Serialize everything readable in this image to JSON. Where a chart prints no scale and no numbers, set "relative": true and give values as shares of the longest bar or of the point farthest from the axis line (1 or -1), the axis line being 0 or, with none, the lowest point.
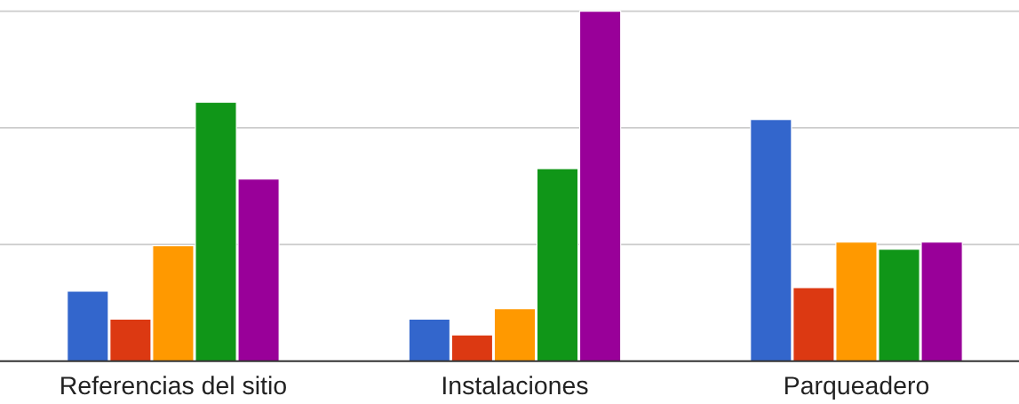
{
  "chart_data": {
    "type": "bar",
    "relative": true,
    "legend": false,
    "categories": [
      "Referencias del sitio",
      "Instalaciones",
      "Parqueadero"
    ],
    "series": [
      {
        "color": "#3366cc",
        "values": [
          0.2,
          0.12,
          0.69
        ]
      },
      {
        "color": "#dc3912",
        "values": [
          0.12,
          0.075,
          0.21
        ]
      },
      {
        "color": "#ff9900",
        "values": [
          0.33,
          0.15,
          0.34
        ]
      },
      {
        "color": "#109618",
        "values": [
          0.74,
          0.55,
          0.32
        ]
      },
      {
        "color": "#990099",
        "values": [
          0.52,
          1,
          0.34
        ]
      }
    ],
    "ref_lines": [
      {
        "axis": "y",
        "value": 0.333,
        "color": "#cccccc"
      },
      {
        "axis": "y",
        "value": 0.667,
        "color": "#cccccc"
      },
      {
        "axis": "y",
        "value": 1,
        "color": "#cccccc"
      }
    ]
  }
}
